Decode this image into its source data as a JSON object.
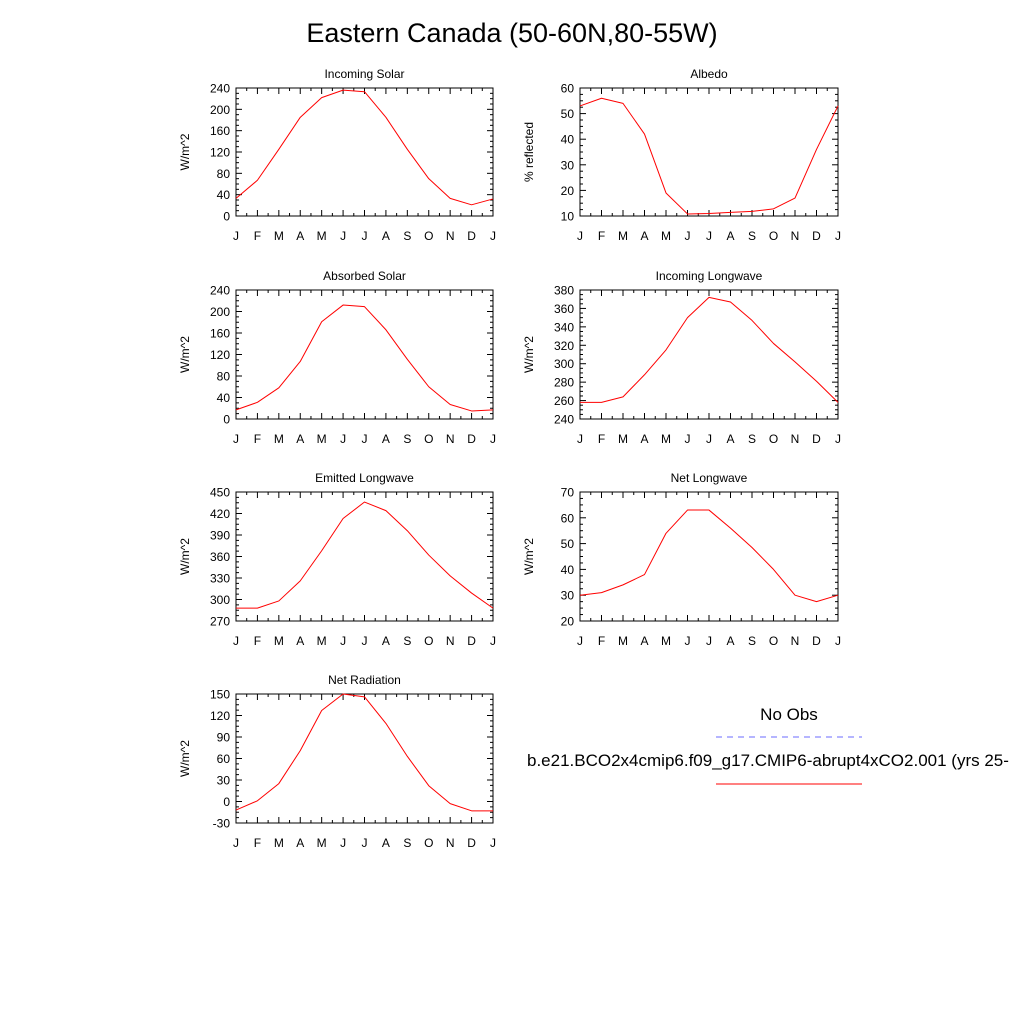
{
  "title": "Eastern Canada (50-60N,80-55W)",
  "legend": {
    "obs_label": "No Obs",
    "obs_color": "#6b6bff",
    "case_label": "b.e21.BCO2x4cmip6.f09_g17.CMIP6-abrupt4xCO2.001 (yrs 25-",
    "case_color": "#ff0000"
  },
  "chart_data": [
    {
      "type": "line",
      "title": "Incoming Solar",
      "ylabel": "W/m^2",
      "xlabel": "",
      "categories": [
        "J",
        "F",
        "M",
        "A",
        "M",
        "J",
        "J",
        "A",
        "S",
        "O",
        "N",
        "D",
        "J"
      ],
      "ylim": [
        0,
        240
      ],
      "yticks": [
        0,
        40,
        80,
        120,
        160,
        200,
        240
      ],
      "series": [
        {
          "color": "#ff0000",
          "values": [
            33,
            67,
            125,
            185,
            222,
            236,
            233,
            185,
            125,
            70,
            33,
            21,
            32
          ]
        }
      ]
    },
    {
      "type": "line",
      "title": "Albedo",
      "ylabel": "% reflected",
      "xlabel": "",
      "categories": [
        "J",
        "F",
        "M",
        "A",
        "M",
        "J",
        "J",
        "A",
        "S",
        "O",
        "N",
        "D",
        "J"
      ],
      "ylim": [
        10,
        60
      ],
      "yticks": [
        10,
        20,
        30,
        40,
        50,
        60
      ],
      "series": [
        {
          "color": "#ff0000",
          "values": [
            53,
            56,
            54,
            42,
            19,
            10.8,
            11,
            11.4,
            11.8,
            12.8,
            17,
            36,
            53
          ]
        }
      ]
    },
    {
      "type": "line",
      "title": "Absorbed Solar",
      "ylabel": "W/m^2",
      "xlabel": "",
      "categories": [
        "J",
        "F",
        "M",
        "A",
        "M",
        "J",
        "J",
        "A",
        "S",
        "O",
        "N",
        "D",
        "J"
      ],
      "ylim": [
        0,
        240
      ],
      "yticks": [
        0,
        40,
        80,
        120,
        160,
        200,
        240
      ],
      "series": [
        {
          "color": "#ff0000",
          "values": [
            17,
            31,
            58,
            107,
            181,
            212,
            209,
            166,
            111,
            60,
            27,
            15,
            17
          ]
        }
      ]
    },
    {
      "type": "line",
      "title": "Incoming Longwave",
      "ylabel": "W/m^2",
      "xlabel": "",
      "categories": [
        "J",
        "F",
        "M",
        "A",
        "M",
        "J",
        "J",
        "A",
        "S",
        "O",
        "N",
        "D",
        "J"
      ],
      "ylim": [
        240,
        380
      ],
      "yticks": [
        240,
        260,
        280,
        300,
        320,
        340,
        360,
        380
      ],
      "series": [
        {
          "color": "#ff0000",
          "values": [
            258,
            258,
            264,
            288,
            315,
            350,
            372,
            367,
            347,
            322,
            302,
            281,
            258
          ]
        }
      ]
    },
    {
      "type": "line",
      "title": "Emitted Longwave",
      "ylabel": "W/m^2",
      "xlabel": "",
      "categories": [
        "J",
        "F",
        "M",
        "A",
        "M",
        "J",
        "J",
        "A",
        "S",
        "O",
        "N",
        "D",
        "J"
      ],
      "ylim": [
        270,
        450
      ],
      "yticks": [
        270,
        300,
        330,
        360,
        390,
        420,
        450
      ],
      "series": [
        {
          "color": "#ff0000",
          "values": [
            288,
            288,
            298,
            326,
            368,
            413,
            436,
            424,
            396,
            362,
            333,
            309,
            288
          ]
        }
      ]
    },
    {
      "type": "line",
      "title": "Net Longwave",
      "ylabel": "W/m^2",
      "xlabel": "",
      "categories": [
        "J",
        "F",
        "M",
        "A",
        "M",
        "J",
        "J",
        "A",
        "S",
        "O",
        "N",
        "D",
        "J"
      ],
      "ylim": [
        20,
        70
      ],
      "yticks": [
        20,
        30,
        40,
        50,
        60,
        70
      ],
      "series": [
        {
          "color": "#ff0000",
          "values": [
            30,
            31,
            34,
            38,
            54,
            63,
            63,
            56,
            48.5,
            40,
            30,
            27.5,
            30
          ]
        }
      ]
    },
    {
      "type": "line",
      "title": "Net Radiation",
      "ylabel": "W/m^2",
      "xlabel": "",
      "categories": [
        "J",
        "F",
        "M",
        "A",
        "M",
        "J",
        "J",
        "A",
        "S",
        "O",
        "N",
        "D",
        "J"
      ],
      "ylim": [
        -30,
        150
      ],
      "yticks": [
        -30,
        0,
        30,
        60,
        90,
        120,
        150
      ],
      "series": [
        {
          "color": "#ff0000",
          "values": [
            -12,
            1,
            25,
            71,
            127,
            150,
            146,
            109,
            63,
            22,
            -3,
            -13,
            -13
          ]
        }
      ]
    }
  ]
}
